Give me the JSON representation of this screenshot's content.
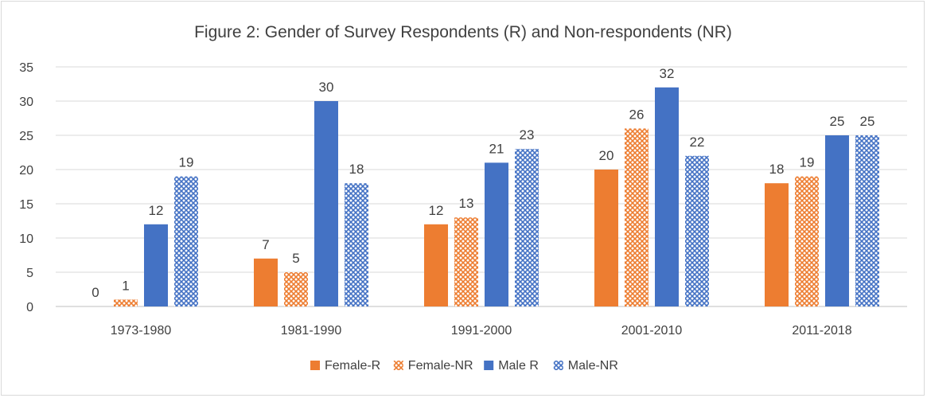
{
  "chart_data": {
    "type": "bar",
    "title": "Figure 2:  Gender of Survey Respondents (R) and Non-respondents (NR)",
    "xlabel": "",
    "ylabel": "",
    "categories": [
      "1973-1980",
      "1981-1990",
      "1991-2000",
      "2001-2010",
      "2011-2018"
    ],
    "series": [
      {
        "name": "Female-R",
        "values": [
          0,
          7,
          12,
          20,
          18
        ],
        "color": "#ED7D31",
        "pattern": "solid"
      },
      {
        "name": "Female-NR",
        "values": [
          1,
          5,
          13,
          26,
          19
        ],
        "color": "#ED7D31",
        "pattern": "dotted"
      },
      {
        "name": "Male R",
        "values": [
          12,
          30,
          21,
          32,
          25
        ],
        "color": "#4472C4",
        "pattern": "solid"
      },
      {
        "name": "Male-NR",
        "values": [
          19,
          18,
          23,
          22,
          25
        ],
        "color": "#4472C4",
        "pattern": "dotted"
      }
    ],
    "ylim": [
      0,
      35
    ],
    "yticks": [
      0,
      5,
      10,
      15,
      20,
      25,
      30,
      35
    ],
    "grid": true,
    "legend": "bottom",
    "data_labels": true
  }
}
